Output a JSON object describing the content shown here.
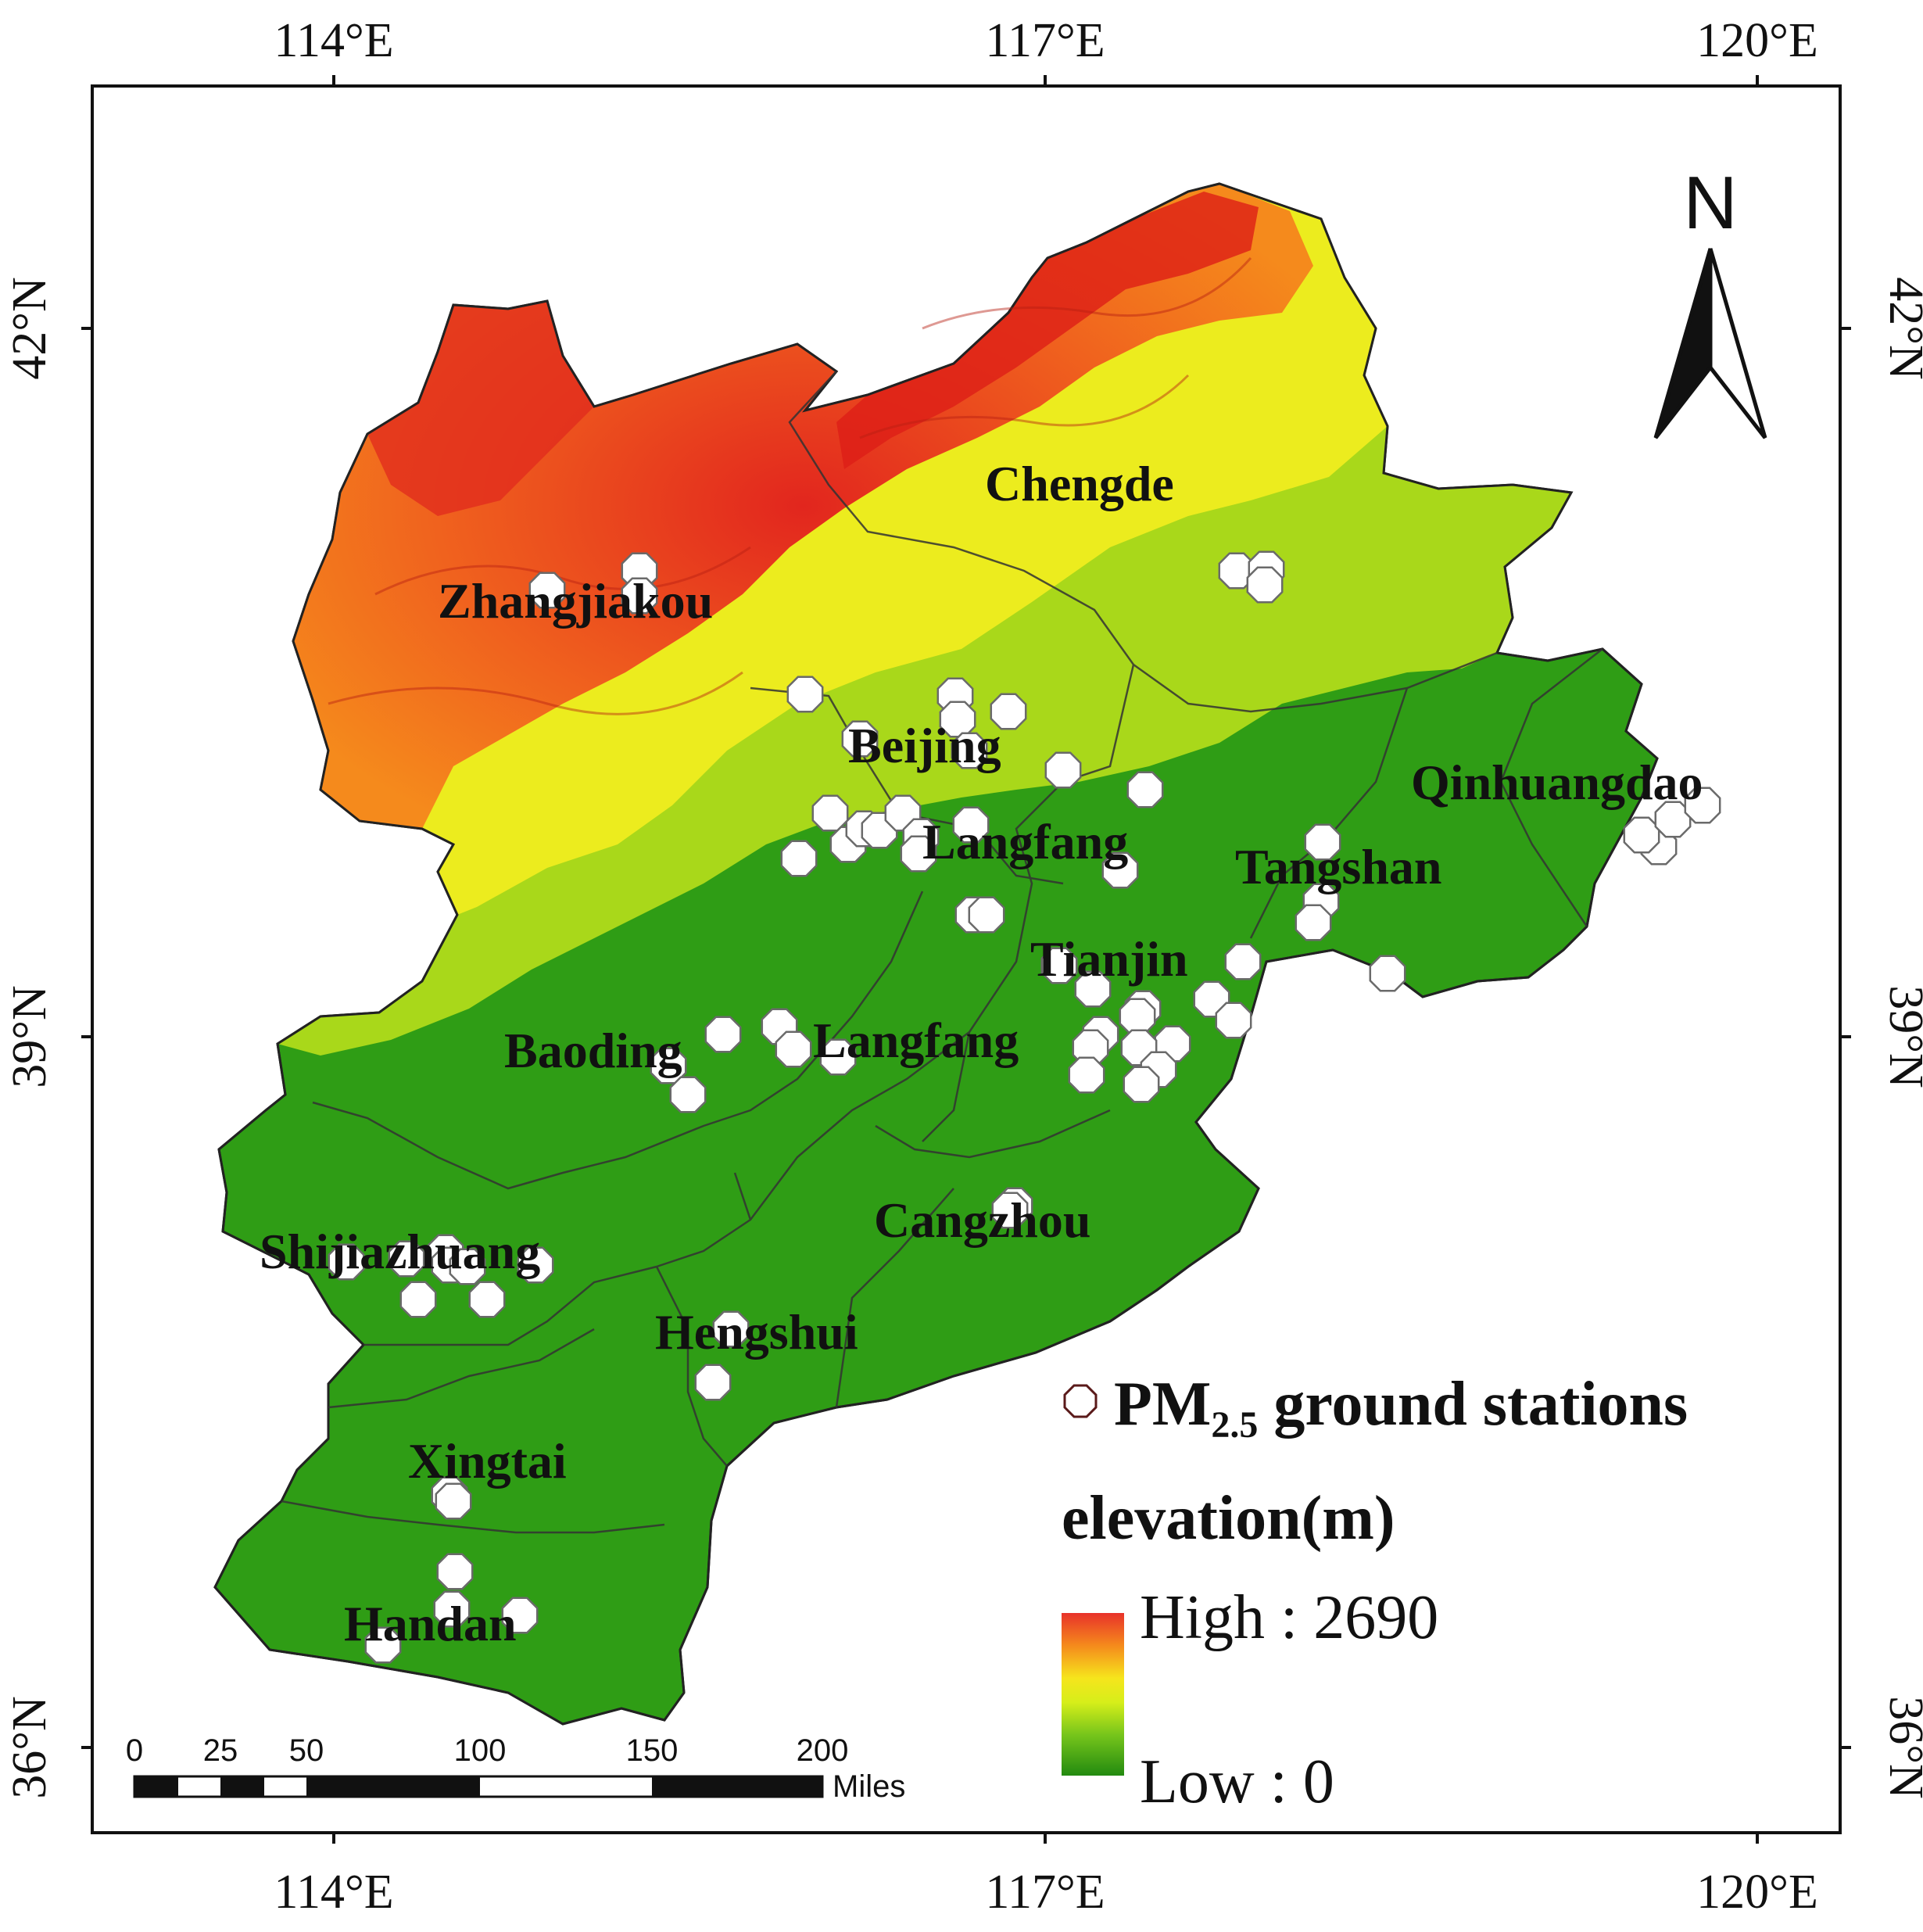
{
  "axes": {
    "top_lon": [
      "114°E",
      "117°E",
      "120°E"
    ],
    "bottom_lon": [
      "114°E",
      "117°E",
      "120°E"
    ],
    "left_lat": [
      "42°N",
      "39°N",
      "36°N"
    ],
    "right_lat": [
      "42°N",
      "39°N",
      "36°N"
    ]
  },
  "cities": [
    {
      "id": "zhangjiakou",
      "name": "Zhangjiakou"
    },
    {
      "id": "chengde",
      "name": "Chengde"
    },
    {
      "id": "beijing",
      "name": "Beijing"
    },
    {
      "id": "qinhuangdao",
      "name": "Qinhuangdao"
    },
    {
      "id": "langfang-north",
      "name": "Langfang"
    },
    {
      "id": "tangshan",
      "name": "Tangshan"
    },
    {
      "id": "tianjin",
      "name": "Tianjin"
    },
    {
      "id": "baoding",
      "name": "Baoding"
    },
    {
      "id": "langfang-south",
      "name": "Langfang"
    },
    {
      "id": "cangzhou",
      "name": "Cangzhou"
    },
    {
      "id": "shijiazhuang",
      "name": "Shijiazhuang"
    },
    {
      "id": "hengshui",
      "name": "Hengshui"
    },
    {
      "id": "xingtai",
      "name": "Xingtai"
    },
    {
      "id": "handan",
      "name": "Handan"
    }
  ],
  "legend": {
    "stations_pm": "PM",
    "stations_sub": "2.5",
    "stations_rest": " ground stations",
    "elevation_title": "elevation(m)",
    "high_label": "High : 2690",
    "low_label": "Low : 0",
    "colors": [
      "#e8322a",
      "#f58a1c",
      "#f6e51c",
      "#d6ee1a",
      "#76c51b",
      "#2e9e14",
      "#238a10"
    ]
  },
  "scale_bar": {
    "ticks": [
      "0",
      "25",
      "50",
      "100",
      "150",
      "200"
    ],
    "unit": "Miles"
  },
  "north_arrow": {
    "label": "N",
    "icon": "north-arrow-icon"
  },
  "stations": [
    [
      700,
      755
    ],
    [
      818,
      730
    ],
    [
      818,
      762
    ],
    [
      1582,
      730
    ],
    [
      1620,
      728
    ],
    [
      1618,
      748
    ],
    [
      1030,
      888
    ],
    [
      1100,
      945
    ],
    [
      1222,
      890
    ],
    [
      1225,
      920
    ],
    [
      1290,
      910
    ],
    [
      1240,
      960
    ],
    [
      1360,
      985
    ],
    [
      1062,
      1040
    ],
    [
      1085,
      1080
    ],
    [
      1105,
      1060
    ],
    [
      1125,
      1062
    ],
    [
      1155,
      1040
    ],
    [
      1178,
      1070
    ],
    [
      1242,
      1055
    ],
    [
      1022,
      1098
    ],
    [
      1175,
      1092
    ],
    [
      1465,
      1010
    ],
    [
      1433,
      1113
    ],
    [
      1245,
      1170
    ],
    [
      1262,
      1170
    ],
    [
      1692,
      1077
    ],
    [
      1690,
      1153
    ],
    [
      1680,
      1180
    ],
    [
      1775,
      1245
    ],
    [
      2122,
      1083
    ],
    [
      2100,
      1068
    ],
    [
      2140,
      1048
    ],
    [
      2178,
      1030
    ],
    [
      1355,
      1235
    ],
    [
      1398,
      1265
    ],
    [
      1590,
      1230
    ],
    [
      1550,
      1278
    ],
    [
      1578,
      1305
    ],
    [
      1462,
      1290
    ],
    [
      1455,
      1300
    ],
    [
      1408,
      1323
    ],
    [
      1500,
      1335
    ],
    [
      1395,
      1340
    ],
    [
      1457,
      1340
    ],
    [
      1482,
      1368
    ],
    [
      1390,
      1375
    ],
    [
      1460,
      1387
    ],
    [
      925,
      1323
    ],
    [
      997,
      1313
    ],
    [
      1015,
      1342
    ],
    [
      1072,
      1352
    ],
    [
      855,
      1363
    ],
    [
      880,
      1400
    ],
    [
      1298,
      1542
    ],
    [
      1292,
      1548
    ],
    [
      443,
      1614
    ],
    [
      520,
      1610
    ],
    [
      570,
      1602
    ],
    [
      575,
      1618
    ],
    [
      598,
      1620
    ],
    [
      535,
      1662
    ],
    [
      623,
      1662
    ],
    [
      685,
      1618
    ],
    [
      935,
      1700
    ],
    [
      912,
      1768
    ],
    [
      575,
      1912
    ],
    [
      580,
      1920
    ],
    [
      582,
      2010
    ],
    [
      578,
      2058
    ],
    [
      665,
      2066
    ],
    [
      490,
      2104
    ]
  ]
}
